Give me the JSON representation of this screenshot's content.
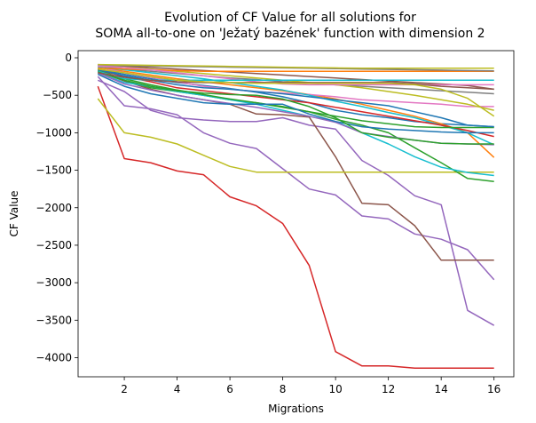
{
  "chart_data": {
    "type": "line",
    "title": "Evolution of CF Value for all solutions for\nSOMA all-to-one on 'Ježatý bazének' function with dimension 2",
    "xlabel": "Migrations",
    "ylabel": "CF Value",
    "xlim": [
      0.25,
      16.75
    ],
    "ylim": [
      -4255,
      95
    ],
    "xticks": [
      2,
      4,
      6,
      8,
      10,
      12,
      14,
      16
    ],
    "yticks": [
      0,
      -500,
      -1000,
      -1500,
      -2000,
      -2500,
      -3000,
      -3500,
      -4000
    ],
    "grid": false,
    "legend": "none",
    "x": [
      1,
      2,
      3,
      4,
      5,
      6,
      7,
      8,
      9,
      10,
      11,
      12,
      13,
      14,
      15,
      16
    ],
    "series": [
      {
        "color": "#d62728",
        "values": [
          -380,
          -1345,
          -1400,
          -1510,
          -1560,
          -1855,
          -1975,
          -2210,
          -2770,
          -3920,
          -4110,
          -4110,
          -4140,
          -4140,
          -4140,
          -4140
        ]
      },
      {
        "color": "#9467bd",
        "values": [
          -250,
          -640,
          -680,
          -760,
          -1000,
          -1140,
          -1210,
          -1480,
          -1750,
          -1830,
          -2110,
          -2150,
          -2350,
          -2420,
          -2560,
          -2960
        ]
      },
      {
        "color": "#9467bd",
        "values": [
          -300,
          -450,
          -700,
          -800,
          -830,
          -850,
          -850,
          -800,
          -900,
          -950,
          -1370,
          -1570,
          -1840,
          -1960,
          -3370,
          -3570
        ]
      },
      {
        "color": "#8c564b",
        "values": [
          -180,
          -310,
          -420,
          -500,
          -560,
          -620,
          -750,
          -760,
          -790,
          -1320,
          -1940,
          -1960,
          -2240,
          -2700,
          -2700,
          -2700
        ]
      },
      {
        "color": "#bcbd22",
        "values": [
          -545,
          -1000,
          -1060,
          -1150,
          -1300,
          -1450,
          -1525,
          -1525,
          -1525,
          -1525,
          -1525,
          -1525,
          -1525,
          -1525,
          -1525,
          -1525
        ]
      },
      {
        "color": "#2ca02c",
        "values": [
          -150,
          -300,
          -400,
          -450,
          -500,
          -560,
          -600,
          -650,
          -720,
          -820,
          -900,
          -1000,
          -1200,
          -1400,
          -1610,
          -1650
        ]
      },
      {
        "color": "#17becf",
        "values": [
          -200,
          -330,
          -380,
          -450,
          -500,
          -560,
          -620,
          -700,
          -780,
          -850,
          -1000,
          -1150,
          -1320,
          -1460,
          -1530,
          -1570
        ]
      },
      {
        "color": "#1f77b4",
        "values": [
          -150,
          -220,
          -280,
          -330,
          -370,
          -410,
          -460,
          -520,
          -600,
          -700,
          -760,
          -800,
          -850,
          -880,
          -900,
          -920
        ]
      },
      {
        "color": "#ff7f0e",
        "values": [
          -130,
          -180,
          -230,
          -280,
          -320,
          -360,
          -400,
          -440,
          -490,
          -550,
          -620,
          -700,
          -780,
          -880,
          -1000,
          -1330
        ]
      },
      {
        "color": "#e377c2",
        "values": [
          -120,
          -200,
          -260,
          -320,
          -380,
          -420,
          -450,
          -470,
          -490,
          -520,
          -560,
          -580,
          -600,
          -620,
          -650,
          -650
        ]
      },
      {
        "color": "#7f7f7f",
        "values": [
          -110,
          -150,
          -180,
          -210,
          -240,
          -270,
          -290,
          -320,
          -340,
          -360,
          -380,
          -400,
          -420,
          -440,
          -460,
          -480
        ]
      },
      {
        "color": "#bcbd22",
        "values": [
          -100,
          -120,
          -150,
          -180,
          -210,
          -240,
          -270,
          -300,
          -330,
          -360,
          -400,
          -450,
          -500,
          -560,
          -620,
          -700
        ]
      },
      {
        "color": "#8c564b",
        "values": [
          -90,
          -110,
          -130,
          -150,
          -170,
          -190,
          -210,
          -230,
          -250,
          -270,
          -290,
          -310,
          -330,
          -350,
          -370,
          -420
        ]
      },
      {
        "color": "#17becf",
        "values": [
          -130,
          -160,
          -200,
          -240,
          -280,
          -330,
          -380,
          -430,
          -500,
          -580,
          -650,
          -730,
          -800,
          -900,
          -1000,
          -1160
        ]
      },
      {
        "color": "#d62728",
        "values": [
          -160,
          -250,
          -320,
          -400,
          -440,
          -480,
          -520,
          -560,
          -600,
          -660,
          -720,
          -780,
          -840,
          -900,
          -970,
          -1050
        ]
      },
      {
        "color": "#2ca02c",
        "values": [
          -170,
          -280,
          -360,
          -430,
          -490,
          -550,
          -600,
          -660,
          -720,
          -780,
          -840,
          -880,
          -920,
          -930,
          -930,
          -930
        ]
      },
      {
        "color": "#9467bd",
        "values": [
          -200,
          -350,
          -430,
          -500,
          -560,
          -610,
          -660,
          -720,
          -780,
          -860,
          -1000,
          -1050,
          -1100,
          -1140,
          -1150,
          -1160
        ]
      },
      {
        "color": "#1f77b4",
        "values": [
          -220,
          -380,
          -480,
          -540,
          -600,
          -620,
          -620,
          -620,
          -750,
          -850,
          -920,
          -950,
          -970,
          -990,
          -1000,
          -1000
        ]
      },
      {
        "color": "#ff7f0e",
        "values": [
          -140,
          -150,
          -160,
          -170,
          -180,
          -180,
          -180,
          -180,
          -180,
          -180,
          -180,
          -180,
          -180,
          -180,
          -180,
          -180
        ]
      },
      {
        "color": "#7f7f7f",
        "values": [
          -100,
          -105,
          -110,
          -115,
          -120,
          -125,
          -130,
          -135,
          -140,
          -145,
          -150,
          -155,
          -160,
          -165,
          -170,
          -175
        ]
      },
      {
        "color": "#bcbd22",
        "values": [
          -90,
          -95,
          -100,
          -105,
          -110,
          -115,
          -120,
          -125,
          -130,
          -135,
          -140,
          -140,
          -140,
          -140,
          -140,
          -140
        ]
      },
      {
        "color": "#e377c2",
        "values": [
          -110,
          -130,
          -160,
          -200,
          -240,
          -280,
          -320,
          -350,
          -360,
          -360,
          -360,
          -360,
          -360,
          -360,
          -360,
          -360
        ]
      },
      {
        "color": "#17becf",
        "values": [
          -180,
          -280,
          -300,
          -300,
          -300,
          -300,
          -300,
          -300,
          -300,
          -300,
          -300,
          -300,
          -300,
          -300,
          -300,
          -300
        ]
      },
      {
        "color": "#1f77b4",
        "values": [
          -160,
          -240,
          -300,
          -360,
          -400,
          -420,
          -450,
          -480,
          -520,
          -560,
          -600,
          -640,
          -720,
          -800,
          -900,
          -920
        ]
      },
      {
        "color": "#2ca02c",
        "values": [
          -190,
          -300,
          -380,
          -440,
          -470,
          -490,
          -500,
          -550,
          -650,
          -800,
          -1000,
          -1060,
          -1100,
          -1140,
          -1150,
          -1150
        ]
      },
      {
        "color": "#8c564b",
        "values": [
          -200,
          -260,
          -300,
          -320,
          -330,
          -330,
          -330,
          -330,
          -330,
          -330,
          -330,
          -330,
          -350,
          -380,
          -400,
          -420
        ]
      },
      {
        "color": "#bcbd22",
        "values": [
          -150,
          -200,
          -250,
          -300,
          -320,
          -330,
          -340,
          -340,
          -340,
          -340,
          -340,
          -340,
          -360,
          -420,
          -540,
          -780
        ]
      }
    ]
  }
}
